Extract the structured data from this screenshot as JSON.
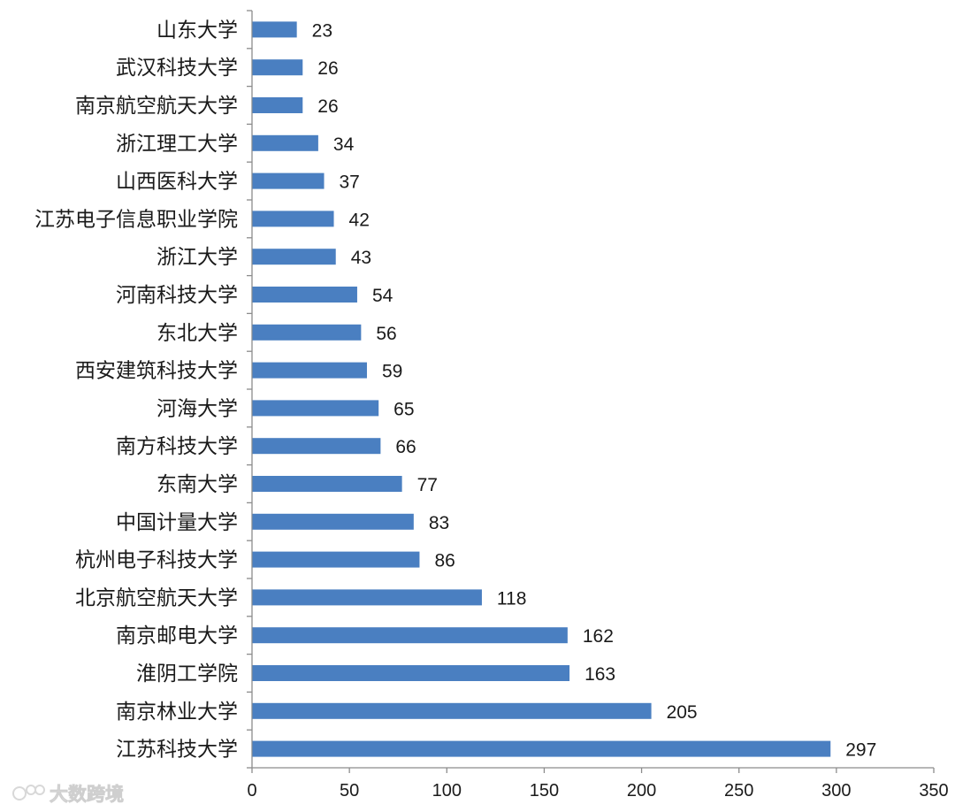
{
  "chart_data": {
    "type": "bar",
    "orientation": "horizontal",
    "categories": [
      "山东大学",
      "武汉科技大学",
      "南京航空航天大学",
      "浙江理工大学",
      "山西医科大学",
      "江苏电子信息职业学院",
      "浙江大学",
      "河南科技大学",
      "东北大学",
      "西安建筑科技大学",
      "河海大学",
      "南方科技大学",
      "东南大学",
      "中国计量大学",
      "杭州电子科技大学",
      "北京航空航天大学",
      "南京邮电大学",
      "淮阴工学院",
      "南京林业大学",
      "江苏科技大学"
    ],
    "values": [
      23,
      26,
      26,
      34,
      37,
      42,
      43,
      54,
      56,
      59,
      65,
      66,
      77,
      83,
      86,
      118,
      162,
      163,
      205,
      297
    ],
    "xlim": [
      0,
      350
    ],
    "x_ticks": [
      0,
      50,
      100,
      150,
      200,
      250,
      300,
      350
    ],
    "title": "",
    "xlabel": "",
    "ylabel": "",
    "bar_color": "#4a7fc1",
    "data_labels": true,
    "grid": false,
    "legend": "none"
  },
  "watermark": {
    "text": "大数跨境",
    "icon": "brand-logo-icon"
  }
}
